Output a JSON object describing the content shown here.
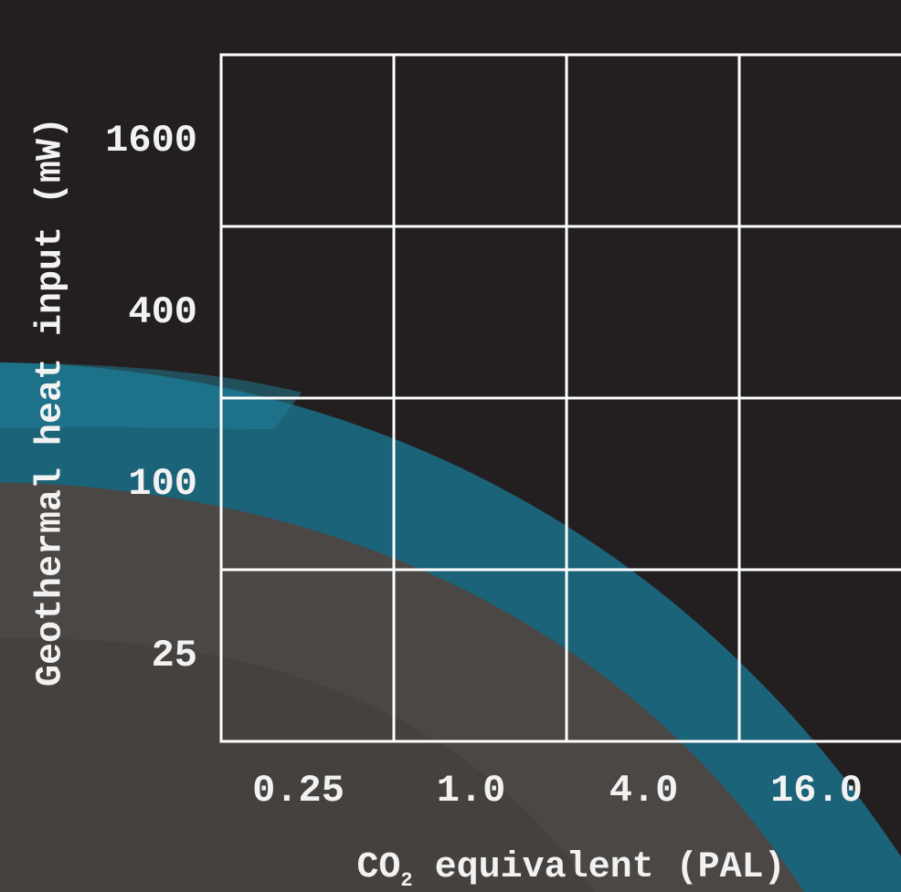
{
  "y_axis": {
    "label": "Geothermal heat input (mW)",
    "ticks": [
      "1600",
      "400",
      "100",
      "25"
    ]
  },
  "x_axis": {
    "ticks": [
      "0.25",
      "1.0",
      "4.0",
      "16.0"
    ],
    "label_prefix": "CO",
    "label_subscript": "2",
    "label_suffix": " equivalent (PAL)"
  }
}
